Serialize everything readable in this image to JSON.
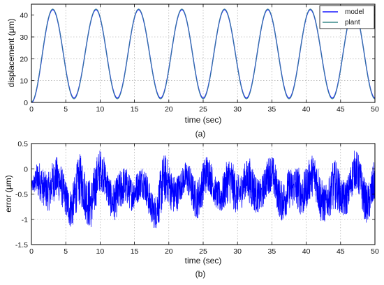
{
  "chart_data": [
    {
      "type": "line",
      "panel_label": "(a)",
      "xlabel": "time (sec)",
      "ylabel": "displacement (μm)",
      "xlim": [
        0,
        50
      ],
      "ylim": [
        0,
        45
      ],
      "xticks": [
        0,
        5,
        10,
        15,
        20,
        25,
        30,
        35,
        40,
        45,
        50
      ],
      "yticks": [
        0,
        10,
        20,
        30,
        40
      ],
      "grid": true,
      "legend": {
        "position": "top-right",
        "entries": [
          "model",
          "plant"
        ]
      },
      "series": [
        {
          "name": "model",
          "color": "#1a1aff",
          "x": [
            0,
            3.1,
            6.2,
            9.4,
            12.5,
            15.6,
            18.8,
            21.9,
            25.0,
            28.1,
            31.3,
            34.4,
            37.5,
            40.6,
            43.8,
            46.9,
            50.0
          ],
          "y": [
            0,
            42.5,
            2.0,
            42.5,
            2.0,
            42.5,
            2.0,
            42.5,
            2.0,
            42.5,
            2.0,
            42.5,
            2.0,
            42.5,
            2.0,
            42.5,
            2.0
          ]
        },
        {
          "name": "plant",
          "color": "#3a8a8a",
          "x": [
            0,
            3.1,
            6.2,
            9.4,
            12.5,
            15.6,
            18.8,
            21.9,
            25.0,
            28.1,
            31.3,
            34.4,
            37.5,
            40.6,
            43.8,
            46.9,
            50.0
          ],
          "y": [
            0.3,
            42.8,
            1.6,
            42.8,
            1.6,
            42.8,
            1.6,
            42.8,
            1.6,
            42.8,
            1.6,
            42.8,
            1.6,
            42.8,
            1.6,
            42.8,
            1.6
          ]
        }
      ]
    },
    {
      "type": "line",
      "panel_label": "(b)",
      "xlabel": "time (sec)",
      "ylabel": "error (μm)",
      "xlim": [
        0,
        50
      ],
      "ylim": [
        -1.5,
        0.5
      ],
      "xticks": [
        0,
        5,
        10,
        15,
        20,
        25,
        30,
        35,
        40,
        45,
        50
      ],
      "yticks": [
        -1.5,
        -1,
        -0.5,
        0,
        0.5
      ],
      "ytick_labels": [
        "-1.5",
        "-1",
        "-0.5",
        "0",
        "0.5"
      ],
      "grid": true,
      "series": [
        {
          "color": "#0000ff",
          "x": [
            0,
            1,
            2,
            3,
            4,
            5,
            6,
            7,
            8,
            9,
            10,
            11,
            12,
            13,
            14,
            15,
            16,
            17,
            18,
            19,
            20,
            21,
            22,
            23,
            24,
            25,
            26,
            27,
            28,
            29,
            30,
            31,
            32,
            33,
            34,
            35,
            36,
            37,
            38,
            39,
            40,
            41,
            42,
            43,
            44,
            45,
            46,
            47,
            48,
            49,
            50
          ],
          "y_max": [
            -0.2,
            0.2,
            0.3,
            0.4,
            0.2,
            0.1,
            0.0,
            0.3,
            0.3,
            0.4,
            0.4,
            0.3,
            0.1,
            0.0,
            0.2,
            0.2,
            0.1,
            0.0,
            -0.2,
            0.3,
            0.3,
            0.3,
            0.1,
            0.2,
            0.2,
            0.3,
            0.3,
            0.1,
            0.1,
            0.3,
            0.3,
            0.3,
            0.2,
            0.1,
            0.3,
            0.3,
            0.2,
            0.2,
            0.0,
            0.4,
            0.4,
            0.3,
            0.3,
            0.0,
            0.2,
            0.1,
            0.2,
            0.4,
            0.3,
            0.1,
            0.3
          ],
          "y_min": [
            -0.5,
            -1.0,
            -0.8,
            -0.9,
            -1.1,
            -1.0,
            -1.3,
            -1.3,
            -1.2,
            -1.2,
            -0.9,
            -0.8,
            -1.1,
            -1.3,
            -0.9,
            -0.8,
            -0.9,
            -1.1,
            -1.2,
            -1.4,
            -1.0,
            -0.9,
            -0.8,
            -0.9,
            -1.0,
            -1.0,
            -0.8,
            -0.8,
            -1.1,
            -1.2,
            -0.9,
            -0.8,
            -1.3,
            -0.9,
            -0.8,
            -0.9,
            -1.0,
            -1.1,
            -1.2,
            -1.0,
            -0.9,
            -1.0,
            -1.2,
            -1.0,
            -1.4,
            -1.1,
            -0.9,
            -0.8,
            -1.0,
            -1.1,
            -1.0
          ]
        }
      ]
    }
  ]
}
